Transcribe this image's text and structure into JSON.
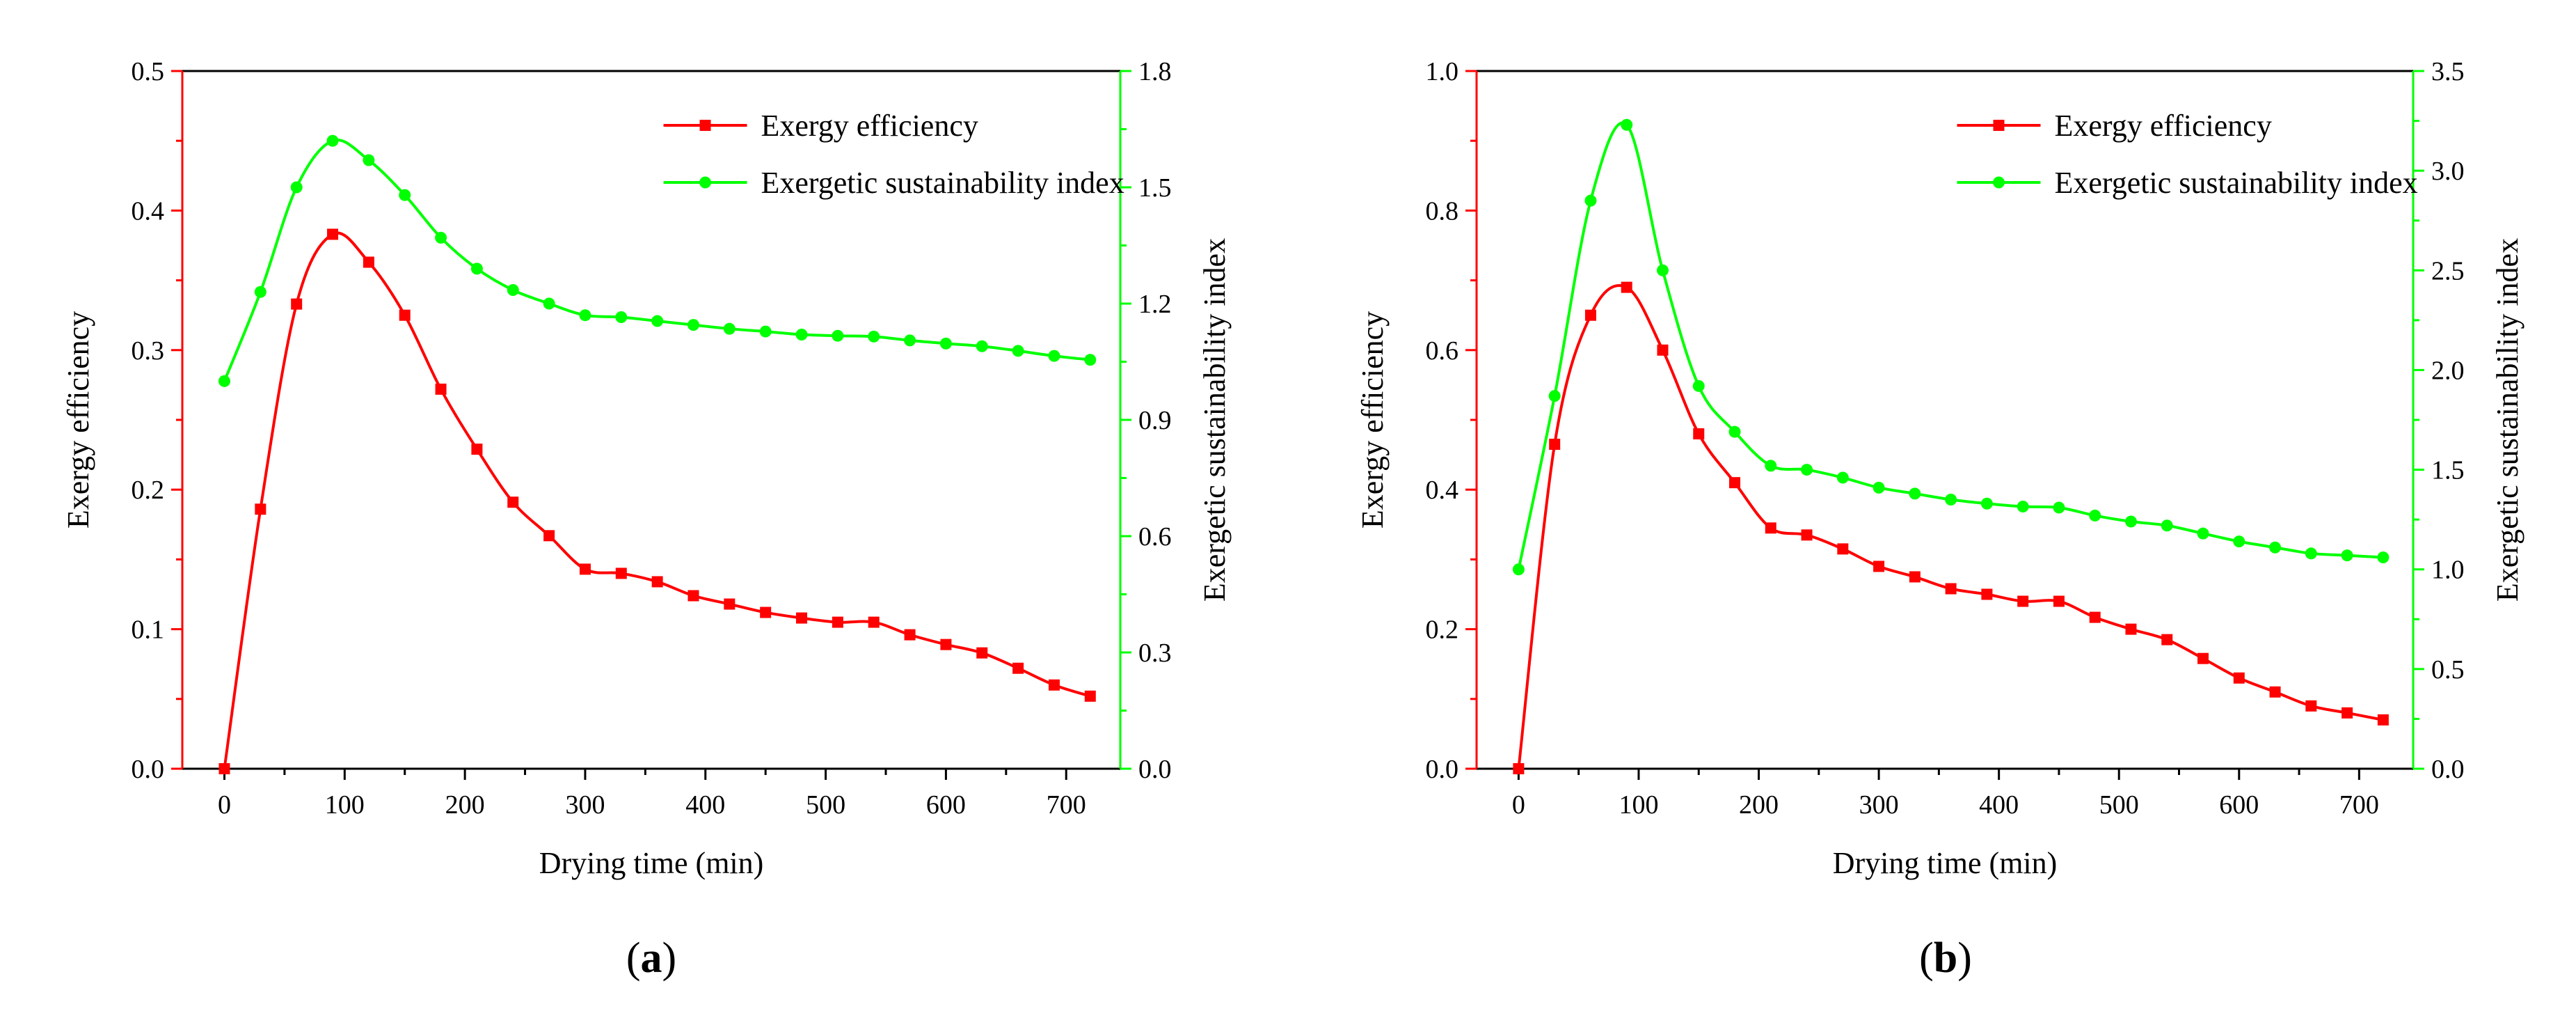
{
  "panels": [
    {
      "label_open": "(",
      "label_letter": "a",
      "label_close": ")"
    },
    {
      "label_open": "(",
      "label_letter": "b",
      "label_close": ")"
    }
  ],
  "colors": {
    "exergy": "#ff0000",
    "esi": "#00ff00",
    "axis": "#000000"
  },
  "chart_data": [
    {
      "type": "line",
      "panel": "a",
      "xlabel": "Drying time (min)",
      "ylabel_left": "Exergy efficiency",
      "ylabel_right": "Exergetic sustainability index",
      "xlim": [
        -35,
        745
      ],
      "xticks": [
        0,
        100,
        200,
        300,
        400,
        500,
        600,
        700
      ],
      "ylim_left": [
        0,
        0.5
      ],
      "yticks_left": [
        "0.0",
        "0.1",
        "0.2",
        "0.3",
        "0.4",
        "0.5"
      ],
      "ylim_right": [
        0,
        1.8
      ],
      "yticks_right": [
        "0.0",
        "0.3",
        "0.6",
        "0.9",
        "1.2",
        "1.5",
        "1.8"
      ],
      "legend_position": "top-right",
      "series": [
        {
          "name": "Exergy efficiency",
          "axis": "left",
          "marker": "square",
          "x": [
            0,
            30,
            60,
            90,
            120,
            150,
            180,
            210,
            240,
            270,
            300,
            330,
            360,
            390,
            420,
            450,
            480,
            510,
            540,
            570,
            600,
            630,
            660,
            690,
            720
          ],
          "y": [
            0.0,
            0.186,
            0.333,
            0.383,
            0.363,
            0.325,
            0.272,
            0.229,
            0.191,
            0.167,
            0.143,
            0.14,
            0.134,
            0.124,
            0.118,
            0.112,
            0.108,
            0.105,
            0.105,
            0.096,
            0.089,
            0.083,
            0.072,
            0.06,
            0.052
          ]
        },
        {
          "name": "Exergetic sustainability index",
          "axis": "right",
          "marker": "circle",
          "x": [
            0,
            30,
            60,
            90,
            120,
            150,
            180,
            210,
            240,
            270,
            300,
            330,
            360,
            390,
            420,
            450,
            480,
            510,
            540,
            570,
            600,
            630,
            660,
            690,
            720
          ],
          "y": [
            1.0,
            1.23,
            1.5,
            1.62,
            1.57,
            1.48,
            1.37,
            1.29,
            1.235,
            1.2,
            1.17,
            1.165,
            1.155,
            1.145,
            1.135,
            1.128,
            1.12,
            1.117,
            1.115,
            1.105,
            1.097,
            1.09,
            1.078,
            1.065,
            1.055
          ]
        }
      ]
    },
    {
      "type": "line",
      "panel": "b",
      "xlabel": "Drying time (min)",
      "ylabel_left": "Exergy efficiency",
      "ylabel_right": "Exergetic sustainability index",
      "xlim": [
        -35,
        745
      ],
      "xticks": [
        0,
        100,
        200,
        300,
        400,
        500,
        600,
        700
      ],
      "ylim_left": [
        0,
        1.0
      ],
      "yticks_left": [
        "0.0",
        "0.2",
        "0.4",
        "0.6",
        "0.8",
        "1.0"
      ],
      "ylim_right": [
        0,
        3.5
      ],
      "yticks_right": [
        "0.0",
        "0.5",
        "1.0",
        "1.5",
        "2.0",
        "2.5",
        "3.0",
        "3.5"
      ],
      "legend_position": "top-right",
      "series": [
        {
          "name": "Exergy efficiency",
          "axis": "left",
          "marker": "square",
          "x": [
            0,
            30,
            60,
            90,
            120,
            150,
            180,
            210,
            240,
            270,
            300,
            330,
            360,
            390,
            420,
            450,
            480,
            510,
            540,
            570,
            600,
            630,
            660,
            690,
            720
          ],
          "y": [
            0.0,
            0.465,
            0.65,
            0.69,
            0.6,
            0.48,
            0.41,
            0.345,
            0.335,
            0.315,
            0.29,
            0.275,
            0.258,
            0.25,
            0.24,
            0.24,
            0.217,
            0.2,
            0.185,
            0.158,
            0.13,
            0.11,
            0.09,
            0.08,
            0.07
          ]
        },
        {
          "name": "Exergetic sustainability index",
          "axis": "right",
          "marker": "circle",
          "x": [
            0,
            30,
            60,
            90,
            120,
            150,
            180,
            210,
            240,
            270,
            300,
            330,
            360,
            390,
            420,
            450,
            480,
            510,
            540,
            570,
            600,
            630,
            660,
            690,
            720
          ],
          "y": [
            1.0,
            1.87,
            2.85,
            3.23,
            2.5,
            1.92,
            1.69,
            1.52,
            1.5,
            1.46,
            1.41,
            1.38,
            1.35,
            1.33,
            1.315,
            1.31,
            1.27,
            1.24,
            1.22,
            1.18,
            1.14,
            1.11,
            1.08,
            1.07,
            1.06
          ]
        }
      ]
    }
  ]
}
